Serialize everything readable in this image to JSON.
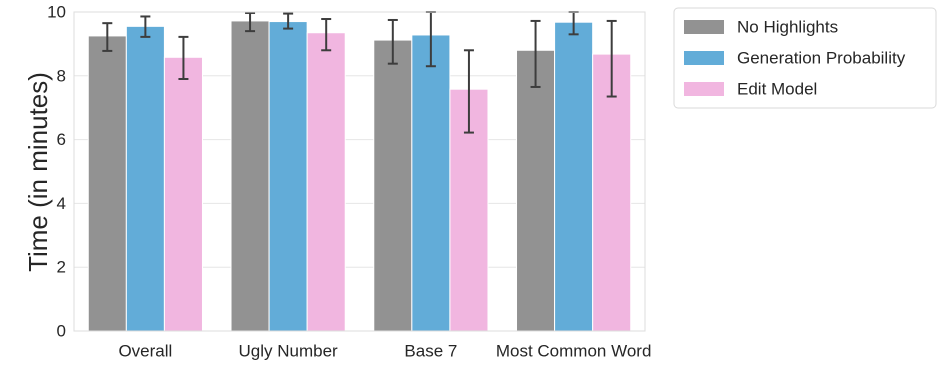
{
  "chart_data": {
    "type": "bar",
    "title": "",
    "xlabel": "",
    "ylabel": "Time (in minutes)",
    "categories": [
      "Overall",
      "Ugly Number",
      "Base 7",
      "Most Common Word"
    ],
    "series": [
      {
        "name": "No Highlights",
        "color": "#929292",
        "values": [
          9.25,
          9.72,
          9.12,
          8.8
        ],
        "err_low": [
          8.78,
          9.4,
          8.38,
          7.65
        ],
        "err_high": [
          9.65,
          9.97,
          9.75,
          9.72
        ]
      },
      {
        "name": "Generation Probability",
        "color": "#62acd8",
        "values": [
          9.55,
          9.7,
          9.28,
          9.68
        ],
        "err_low": [
          9.22,
          9.48,
          8.3,
          9.3
        ],
        "err_high": [
          9.86,
          9.95,
          10.0,
          10.0
        ]
      },
      {
        "name": "Edit Model",
        "color": "#f1b6e0",
        "values": [
          8.58,
          9.35,
          7.58,
          8.68
        ],
        "err_low": [
          7.9,
          8.8,
          6.22,
          7.35
        ],
        "err_high": [
          9.22,
          9.78,
          8.8,
          9.72
        ]
      }
    ],
    "ylim": [
      0,
      10
    ],
    "yticks": [
      "0",
      "2",
      "4",
      "6",
      "8",
      "10"
    ],
    "ytick_values": [
      0,
      2,
      4,
      6,
      8,
      10
    ],
    "grid": true,
    "legend_position": "outside-top-right"
  }
}
